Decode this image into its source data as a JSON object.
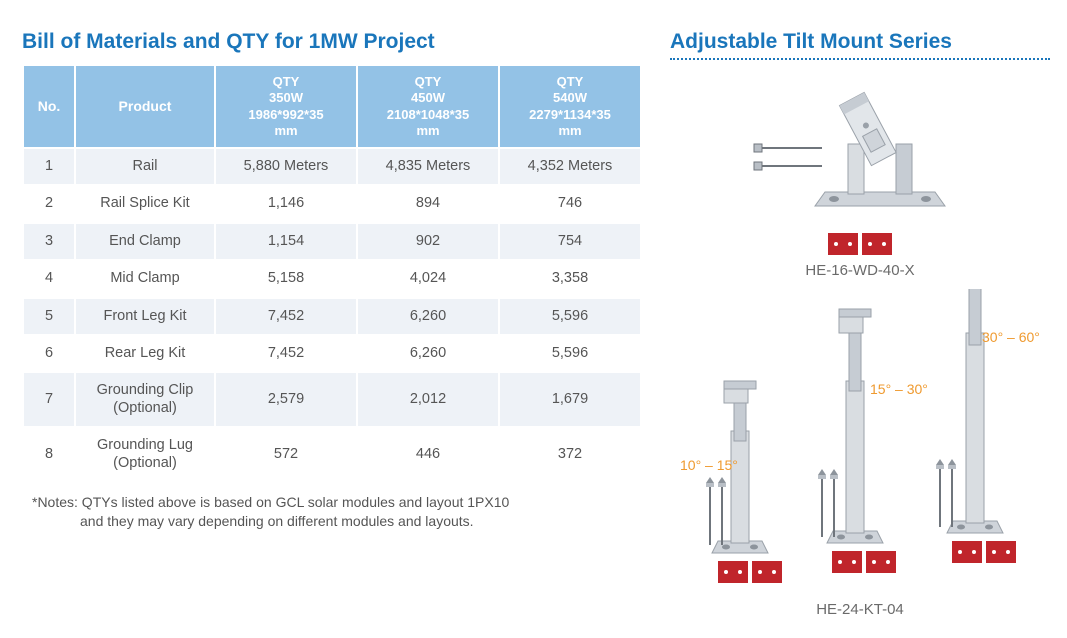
{
  "left": {
    "title": "Bill of Materials and QTY for 1MW Project",
    "columns": {
      "no": "No.",
      "product": "Product",
      "q1_top": "QTY",
      "q1_mid": "350W",
      "q1_dim": "1986*992*35",
      "q1_unit": "mm",
      "q2_top": "QTY",
      "q2_mid": "450W",
      "q2_dim": "2108*1048*35",
      "q2_unit": "mm",
      "q3_top": "QTY",
      "q3_mid": "540W",
      "q3_dim": "2279*1134*35",
      "q3_unit": "mm"
    },
    "rows": [
      {
        "no": "1",
        "product": "Rail",
        "q1": "5,880 Meters",
        "q2": "4,835 Meters",
        "q3": "4,352 Meters"
      },
      {
        "no": "2",
        "product": "Rail Splice Kit",
        "q1": "1,146",
        "q2": "894",
        "q3": "746"
      },
      {
        "no": "3",
        "product": "End Clamp",
        "q1": "1,154",
        "q2": "902",
        "q3": "754"
      },
      {
        "no": "4",
        "product": "Mid Clamp",
        "q1": "5,158",
        "q2": "4,024",
        "q3": "3,358"
      },
      {
        "no": "5",
        "product": "Front Leg Kit",
        "q1": "7,452",
        "q2": "6,260",
        "q3": "5,596"
      },
      {
        "no": "6",
        "product": "Rear Leg Kit",
        "q1": "7,452",
        "q2": "6,260",
        "q3": "5,596"
      },
      {
        "no": "7",
        "product": "Grounding Clip (Optional)",
        "q1": "2,579",
        "q2": "2,012",
        "q3": "1,679"
      },
      {
        "no": "8",
        "product": "Grounding Lug (Optional)",
        "q1": "572",
        "q2": "446",
        "q3": "372"
      }
    ],
    "notes_l1": "*Notes: QTYs listed above is based on GCL solar modules and layout 1PX10",
    "notes_l2": "and they may vary depending on different modules and layouts."
  },
  "right": {
    "title": "Adjustable Tilt Mount Series",
    "product1_label": "HE-16-WD-40-X",
    "product2_label": "HE-24-KT-04",
    "angle1": "10° – 15°",
    "angle2": "15° – 30°",
    "angle3": "30° – 60°",
    "colors": {
      "accent": "#1a76bb",
      "header_bg": "#93c2e6",
      "row_odd": "#eef2f7",
      "red": "#c0252b",
      "orange": "#ef9a2f",
      "metal_light": "#d9dde1",
      "metal_dark": "#a9b0b7"
    }
  }
}
